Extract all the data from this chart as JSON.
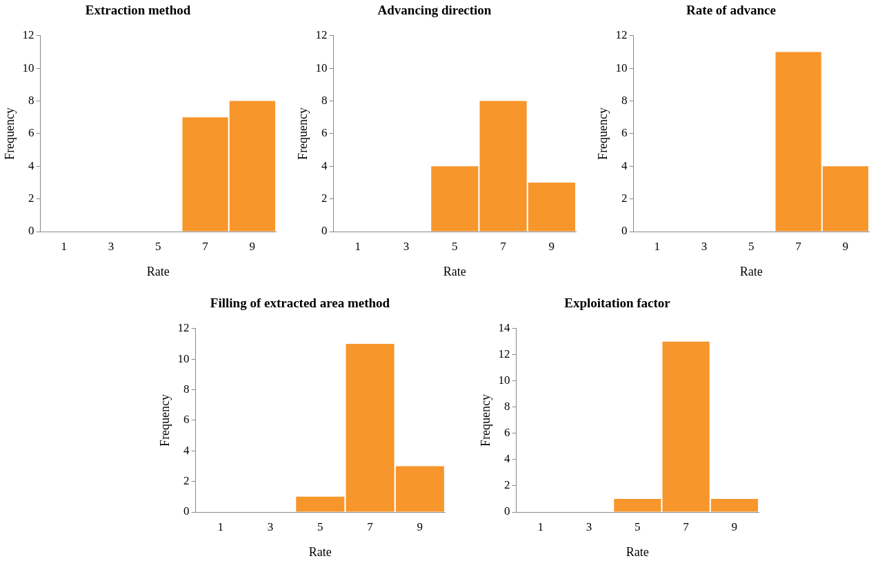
{
  "chart_data": [
    {
      "type": "bar",
      "title": "Extraction method",
      "xlabel": "Rate",
      "ylabel": "Frequency",
      "categories": [
        "1",
        "3",
        "5",
        "7",
        "9"
      ],
      "values": [
        0,
        0,
        0,
        7,
        8
      ],
      "color": "#f7962b",
      "ylim": [
        0,
        12
      ],
      "yticks": [
        0,
        2,
        4,
        6,
        8,
        10,
        12
      ]
    },
    {
      "type": "bar",
      "title": "Advancing direction",
      "xlabel": "Rate",
      "ylabel": "Frequency",
      "categories": [
        "1",
        "3",
        "5",
        "7",
        "9"
      ],
      "values": [
        0,
        0,
        4,
        8,
        3
      ],
      "color": "#f7962b",
      "ylim": [
        0,
        12
      ],
      "yticks": [
        0,
        2,
        4,
        6,
        8,
        10,
        12
      ]
    },
    {
      "type": "bar",
      "title": "Rate of advance",
      "xlabel": "Rate",
      "ylabel": "Frequency",
      "categories": [
        "1",
        "3",
        "5",
        "7",
        "9"
      ],
      "values": [
        0,
        0,
        0,
        11,
        4
      ],
      "color": "#f7962b",
      "ylim": [
        0,
        12
      ],
      "yticks": [
        0,
        2,
        4,
        6,
        8,
        10,
        12
      ]
    },
    {
      "type": "bar",
      "title": "Filling of extracted area method",
      "xlabel": "Rate",
      "ylabel": "Frequency",
      "categories": [
        "1",
        "3",
        "5",
        "7",
        "9"
      ],
      "values": [
        0,
        0,
        1,
        11,
        3
      ],
      "color": "#f7962b",
      "ylim": [
        0,
        12
      ],
      "yticks": [
        0,
        2,
        4,
        6,
        8,
        10,
        12
      ]
    },
    {
      "type": "bar",
      "title": "Exploitation factor",
      "xlabel": "Rate",
      "ylabel": "Frequency",
      "categories": [
        "1",
        "3",
        "5",
        "7",
        "9"
      ],
      "values": [
        0,
        0,
        1,
        13,
        1
      ],
      "color": "#f7962b",
      "ylim": [
        0,
        14
      ],
      "yticks": [
        0,
        2,
        4,
        6,
        8,
        10,
        12,
        14
      ]
    }
  ]
}
